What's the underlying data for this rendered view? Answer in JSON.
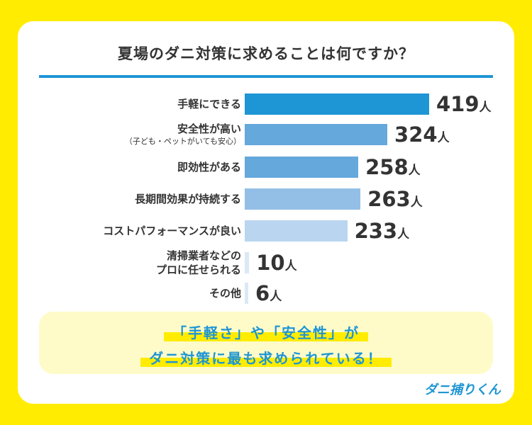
{
  "chart_data": {
    "type": "bar",
    "orientation": "horizontal",
    "title": "夏場のダニ対策に求めることは何ですか？",
    "unit": "人",
    "categories": [
      {
        "label": "手軽にできる",
        "sub": ""
      },
      {
        "label": "安全性が高い",
        "sub": "（子ども・ペットがいても安心）"
      },
      {
        "label": "即効性がある",
        "sub": ""
      },
      {
        "label": "長期間効果が持続する",
        "sub": ""
      },
      {
        "label": "コストパフォーマンスが良い",
        "sub": ""
      },
      {
        "label": "清掃業者などの",
        "sub": "プロに任せられる"
      },
      {
        "label": "その他",
        "sub": ""
      }
    ],
    "values": [
      419,
      324,
      258,
      263,
      233,
      10,
      6
    ],
    "colors": [
      "#1e95d4",
      "#64a8dc",
      "#64a8dc",
      "#93bfe6",
      "#bad5f0",
      "#dbe8f6",
      "#dbe8f6"
    ],
    "xlim": [
      0,
      419
    ],
    "grid": false
  },
  "summary": {
    "line1": "「手軽さ」や「安全性」が",
    "line2": "ダニ対策に最も求められている！"
  },
  "logo": "ダニ捕りくん",
  "colors": {
    "background": "#ffec00",
    "accent": "#1e95d4",
    "summary_bg": "#fefbc9"
  }
}
